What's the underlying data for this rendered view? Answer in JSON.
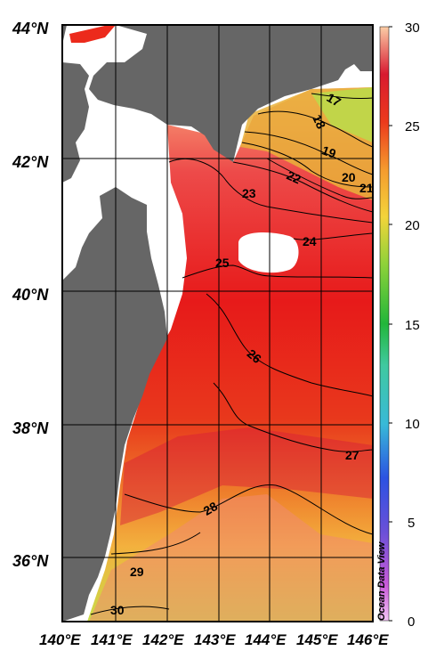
{
  "map": {
    "lat_labels": [
      "44°N",
      "42°N",
      "40°N",
      "38°N",
      "36°N"
    ],
    "lon_labels": [
      "140°E",
      "141°E",
      "142°E",
      "143°E",
      "144°E",
      "145°E",
      "146°E"
    ],
    "contour_labels": [
      "17",
      "18",
      "19",
      "20",
      "21",
      "22",
      "23",
      "24",
      "25",
      "26",
      "27",
      "28",
      "29",
      "30"
    ],
    "credit": "Ocean Data View"
  },
  "colorbar": {
    "ticks": [
      "30",
      "25",
      "20",
      "15",
      "10",
      "5",
      "0"
    ],
    "min": 0,
    "max": 30
  },
  "colors": {
    "land": "#666666",
    "missing": "#ffffff",
    "grid": "#000000"
  }
}
